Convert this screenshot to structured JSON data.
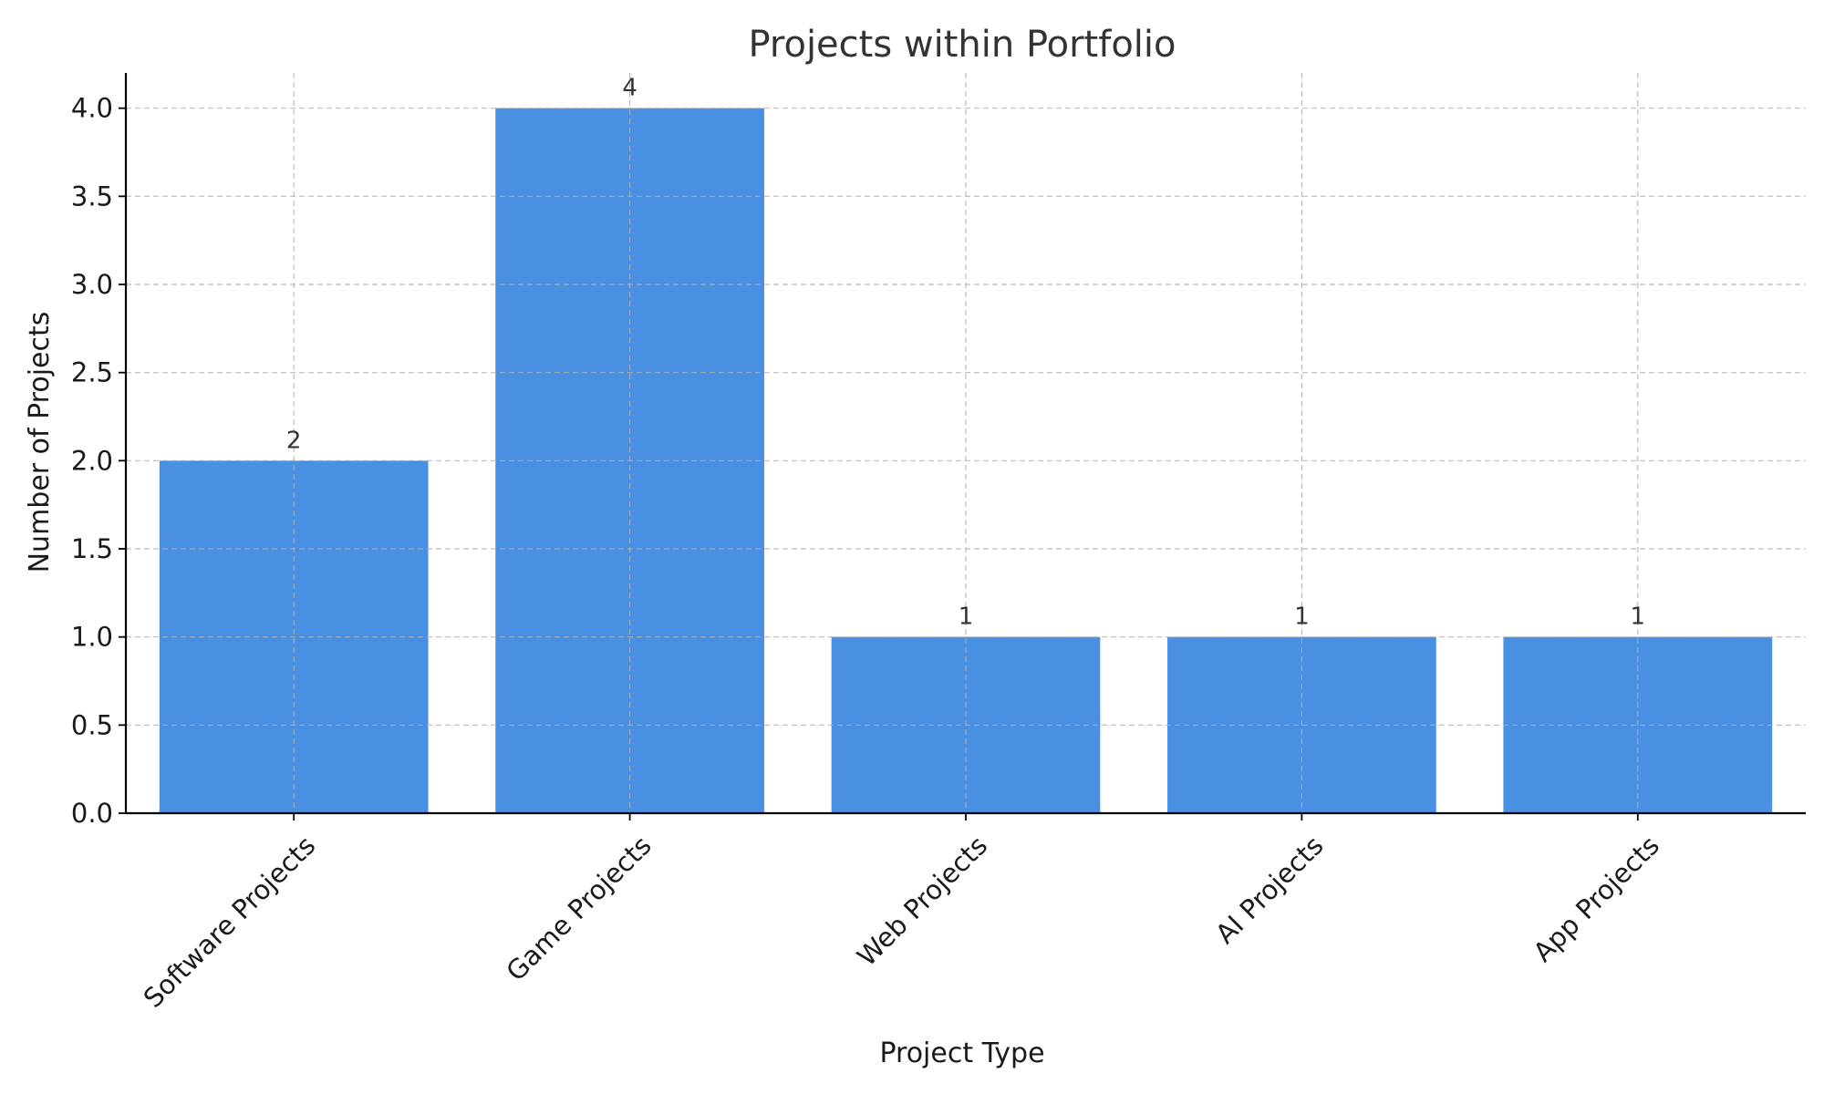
{
  "chart_data": {
    "type": "bar",
    "title": "Projects within Portfolio",
    "xlabel": "Project Type",
    "ylabel": "Number of Projects",
    "categories": [
      "Software Projects",
      "Game Projects",
      "Web Projects",
      "AI Projects",
      "App Projects"
    ],
    "values": [
      2,
      4,
      1,
      1,
      1
    ],
    "data_labels": [
      "2",
      "4",
      "1",
      "1",
      "1"
    ],
    "ylim": [
      0,
      4.2
    ],
    "yticks": [
      0.0,
      0.5,
      1.0,
      1.5,
      2.0,
      2.5,
      3.0,
      3.5,
      4.0
    ],
    "ytick_labels": [
      "0.0",
      "0.5",
      "1.0",
      "1.5",
      "2.0",
      "2.5",
      "3.0",
      "3.5",
      "4.0"
    ],
    "grid": true,
    "bar_color": "#4a90e2"
  }
}
